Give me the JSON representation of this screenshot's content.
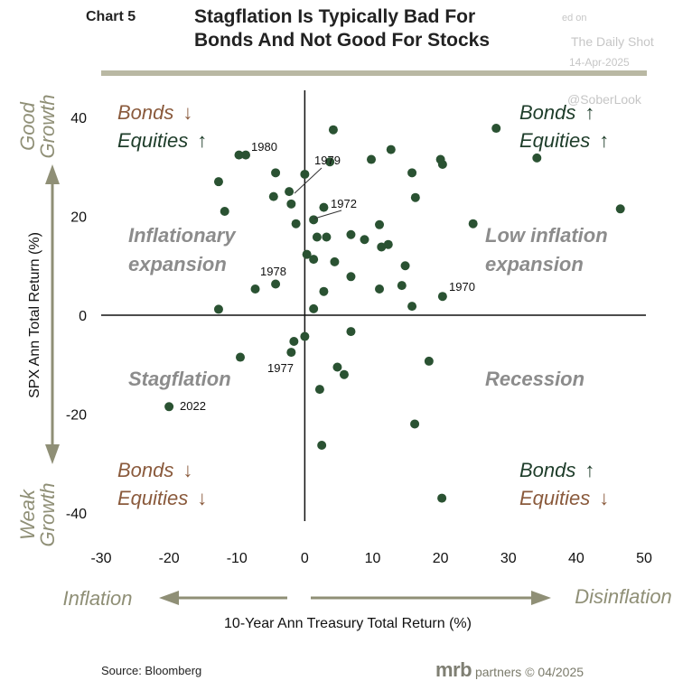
{
  "header": {
    "chart_number": "Chart 5",
    "title_line1": "Stagflation Is Typically Bad For",
    "title_line2": "Bonds And Not Good For Stocks"
  },
  "watermark": {
    "line1": "ed on",
    "line2": "The Daily Shot",
    "line3": "14-Apr-2025",
    "line4": "@SoberLook"
  },
  "colors": {
    "point": "#2a5232",
    "axis": "#111111",
    "arrow": "#8f8f76",
    "quadrant_text": "#8c8c8c",
    "bonds_brown": "#8a5a3c",
    "equities_green": "#1e3d2a",
    "side_label": "#8f8f76"
  },
  "quadrants": {
    "top_left": {
      "line1": "Inflationary",
      "line2": "expansion"
    },
    "top_right": {
      "line1": "Low inflation",
      "line2": "expansion"
    },
    "bottom_left": {
      "line1": "Stagflation"
    },
    "bottom_right": {
      "line1": "Recession"
    }
  },
  "corner_labels": {
    "top_left": {
      "bonds": "Bonds",
      "bonds_arrow": "down",
      "equities": "Equities",
      "equities_arrow": "up"
    },
    "top_right": {
      "bonds": "Bonds",
      "bonds_arrow": "up",
      "equities": "Equities",
      "equities_arrow": "up"
    },
    "bottom_left": {
      "bonds": "Bonds",
      "bonds_arrow": "down",
      "equities": "Equities",
      "equities_arrow": "down"
    },
    "bottom_right": {
      "bonds": "Bonds",
      "bonds_arrow": "up",
      "equities": "Equities",
      "equities_arrow": "down"
    }
  },
  "side_labels": {
    "top_line1": "Good",
    "top_line2": "Growth",
    "bottom_line1": "Weak",
    "bottom_line2": "Growth",
    "left": "Inflation",
    "right": "Disinflation"
  },
  "footer": {
    "source": "Source: Bloomberg",
    "brand_main": "mrb",
    "brand_rest": " partners © 04/2025"
  },
  "chart_data": {
    "type": "scatter",
    "title": "Stagflation Is Typically Bad For Bonds And Not Good For Stocks",
    "xlabel": "10-Year Ann Treasury Total Return (%)",
    "ylabel": "SPX Ann Total Return (%)",
    "xlim": [
      -30,
      50
    ],
    "ylim": [
      -40,
      40
    ],
    "x_ticks": [
      -30,
      -20,
      -10,
      0,
      10,
      20,
      30,
      40,
      50
    ],
    "y_ticks": [
      -40,
      -20,
      0,
      20,
      40
    ],
    "grid": false,
    "series": [
      {
        "values": [
          {
            "x": -9.7,
            "y": 32.4
          },
          {
            "x": -8.7,
            "y": 32.4
          },
          {
            "x": -12.7,
            "y": 27.0
          },
          {
            "x": -4.3,
            "y": 28.8
          },
          {
            "x": -11.8,
            "y": 21.0
          },
          {
            "x": -4.6,
            "y": 24.0
          },
          {
            "x": -2.3,
            "y": 25.0
          },
          {
            "x": -2.0,
            "y": 22.5
          },
          {
            "x": -1.3,
            "y": 18.5
          },
          {
            "x": 0.0,
            "y": 28.5
          },
          {
            "x": 4.2,
            "y": 37.5
          },
          {
            "x": 3.7,
            "y": 31.0
          },
          {
            "x": 9.8,
            "y": 31.5
          },
          {
            "x": 12.7,
            "y": 33.5
          },
          {
            "x": 15.8,
            "y": 28.8
          },
          {
            "x": 20.0,
            "y": 31.5
          },
          {
            "x": 20.3,
            "y": 30.5
          },
          {
            "x": 28.2,
            "y": 37.8
          },
          {
            "x": 34.2,
            "y": 31.8
          },
          {
            "x": 46.5,
            "y": 21.5
          },
          {
            "x": 24.8,
            "y": 18.5
          },
          {
            "x": 16.3,
            "y": 23.8
          },
          {
            "x": 1.3,
            "y": 19.3
          },
          {
            "x": 2.8,
            "y": 21.8
          },
          {
            "x": 1.8,
            "y": 15.8
          },
          {
            "x": 3.2,
            "y": 15.8
          },
          {
            "x": 6.8,
            "y": 16.3
          },
          {
            "x": 8.8,
            "y": 15.3
          },
          {
            "x": 11.0,
            "y": 18.3
          },
          {
            "x": 11.3,
            "y": 13.8
          },
          {
            "x": 12.3,
            "y": 14.3
          },
          {
            "x": 0.3,
            "y": 12.3
          },
          {
            "x": 1.3,
            "y": 11.3
          },
          {
            "x": 4.4,
            "y": 10.8
          },
          {
            "x": 6.8,
            "y": 7.8
          },
          {
            "x": 2.8,
            "y": 4.8
          },
          {
            "x": 11.0,
            "y": 5.3
          },
          {
            "x": 14.8,
            "y": 10.0
          },
          {
            "x": 14.3,
            "y": 6.0
          },
          {
            "x": 15.8,
            "y": 1.8
          },
          {
            "x": 20.3,
            "y": 3.8
          },
          {
            "x": -7.3,
            "y": 5.3
          },
          {
            "x": -4.3,
            "y": 6.3
          },
          {
            "x": -12.7,
            "y": 1.2
          },
          {
            "x": 1.3,
            "y": 1.3
          },
          {
            "x": -9.5,
            "y": -8.5
          },
          {
            "x": -2.0,
            "y": -7.5
          },
          {
            "x": -1.6,
            "y": -5.3
          },
          {
            "x": 0.0,
            "y": -4.3
          },
          {
            "x": 6.8,
            "y": -3.3
          },
          {
            "x": 4.8,
            "y": -10.5
          },
          {
            "x": 5.8,
            "y": -12.0
          },
          {
            "x": 2.2,
            "y": -15.0
          },
          {
            "x": 18.3,
            "y": -9.3
          },
          {
            "x": 16.2,
            "y": -22.0
          },
          {
            "x": -20.0,
            "y": -18.5
          },
          {
            "x": 2.5,
            "y": -26.3
          },
          {
            "x": 20.2,
            "y": -37.0
          }
        ]
      }
    ],
    "annotations": [
      {
        "label": "1980",
        "x": -8.7,
        "y": 32.4
      },
      {
        "label": "1979",
        "x": -1.0,
        "y": 24.5
      },
      {
        "label": "1972",
        "x": 1.3,
        "y": 19.3
      },
      {
        "label": "1978",
        "x": -4.3,
        "y": 6.3
      },
      {
        "label": "1970",
        "x": 20.3,
        "y": 3.8
      },
      {
        "label": "1977",
        "x": -1.3,
        "y": -5.0
      },
      {
        "label": "2022",
        "x": -20.0,
        "y": -18.5
      }
    ]
  }
}
